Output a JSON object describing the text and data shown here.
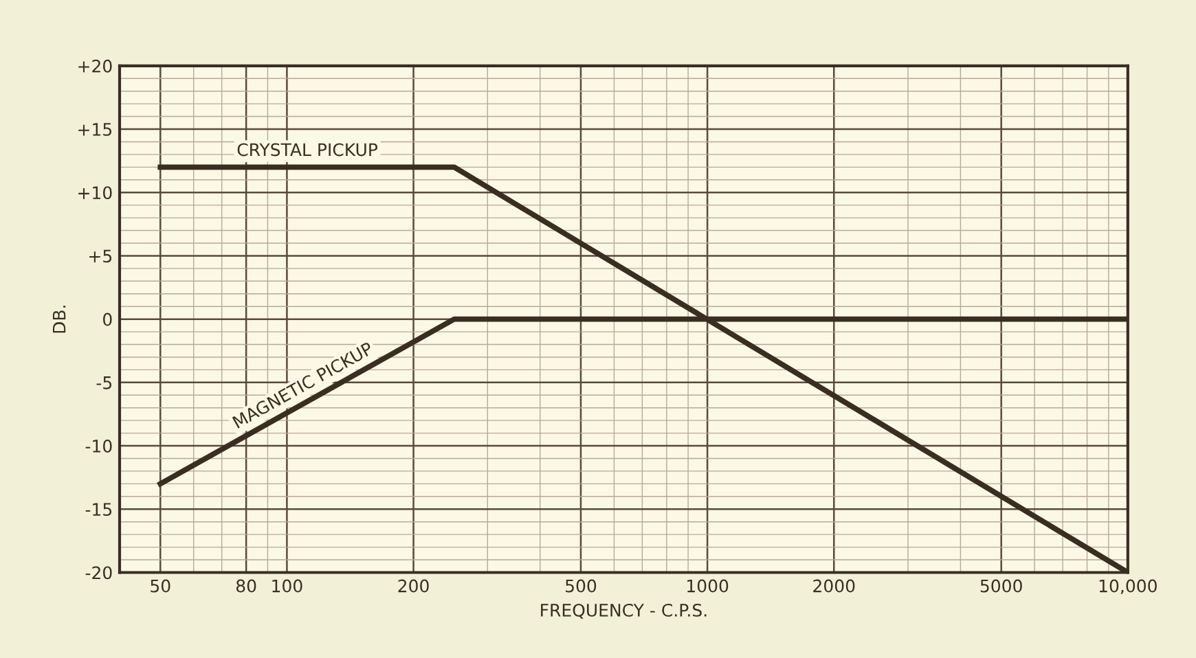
{
  "chart_data": {
    "type": "line",
    "xlabel": "FREQUENCY - C.P.S.",
    "ylabel": "DB.",
    "log": "x",
    "xlim": [
      40,
      10000
    ],
    "xticks": [
      50,
      80,
      100,
      200,
      500,
      1000,
      2000,
      5000,
      {
        "value": 10000,
        "label": "10,000"
      }
    ],
    "ylim": [
      -20,
      20
    ],
    "yticks": [
      {
        "value": -20,
        "label": "-20"
      },
      {
        "value": -15,
        "label": "-15"
      },
      {
        "value": -10,
        "label": "-10"
      },
      {
        "value": -5,
        "label": "-5"
      },
      0,
      {
        "value": 5,
        "label": "+5"
      },
      {
        "value": 10,
        "label": "+10"
      },
      {
        "value": 15,
        "label": "+15"
      },
      {
        "value": 20,
        "label": "+20"
      }
    ],
    "grid": true,
    "legend": false,
    "series": [
      {
        "name": "CRYSTAL PICKUP",
        "color": "#3a2e22",
        "x": [
          50,
          250,
          10000
        ],
        "values": [
          12,
          12,
          -20
        ]
      },
      {
        "name": "MAGNETIC PICKUP",
        "color": "#3a2e22",
        "x": [
          50,
          250,
          10000
        ],
        "values": [
          -13,
          0,
          0
        ]
      }
    ]
  }
}
